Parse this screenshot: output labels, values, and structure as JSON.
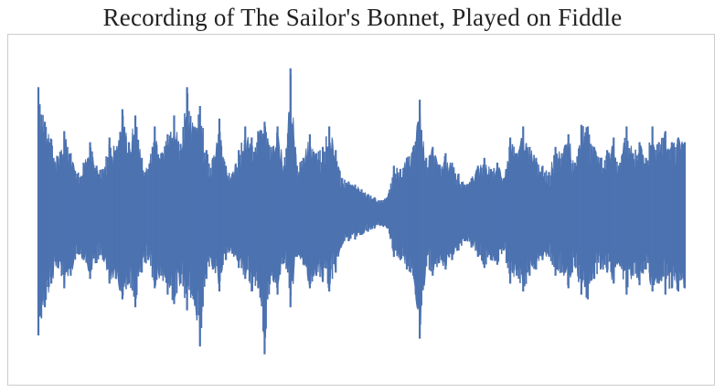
{
  "chart_data": {
    "type": "line",
    "title": "Recording of The Sailor's Bonnet, Played on Fiddle",
    "xlabel": "",
    "ylabel": "",
    "grid": false,
    "axes_visible": false,
    "ylim": [
      -1.0,
      1.0
    ],
    "series": [
      {
        "color": "#4c72b0",
        "envelope": {
          "x": [
            0.0,
            0.01,
            0.02,
            0.03,
            0.04,
            0.05,
            0.06,
            0.07,
            0.08,
            0.09,
            0.1,
            0.11,
            0.12,
            0.13,
            0.14,
            0.15,
            0.16,
            0.17,
            0.18,
            0.19,
            0.2,
            0.21,
            0.22,
            0.23,
            0.24,
            0.25,
            0.26,
            0.27,
            0.28,
            0.29,
            0.3,
            0.31,
            0.32,
            0.33,
            0.34,
            0.35,
            0.36,
            0.37,
            0.38,
            0.39,
            0.4,
            0.41,
            0.42,
            0.43,
            0.44,
            0.45,
            0.46,
            0.47,
            0.48,
            0.49,
            0.5,
            0.51,
            0.52,
            0.53,
            0.54,
            0.55,
            0.56,
            0.57,
            0.58,
            0.59,
            0.6,
            0.61,
            0.62,
            0.63,
            0.64,
            0.65,
            0.66,
            0.67,
            0.68,
            0.69,
            0.7,
            0.71,
            0.72,
            0.73,
            0.74,
            0.75,
            0.76,
            0.77,
            0.78,
            0.79,
            0.8,
            0.81,
            0.82,
            0.83,
            0.84,
            0.85,
            0.86,
            0.87,
            0.88,
            0.89,
            0.9,
            0.91,
            0.92,
            0.93,
            0.94,
            0.95,
            0.96,
            0.97,
            0.98,
            0.99,
            1.0
          ],
          "upper": [
            0.8,
            0.58,
            0.47,
            0.36,
            0.52,
            0.38,
            0.25,
            0.32,
            0.45,
            0.3,
            0.28,
            0.48,
            0.4,
            0.66,
            0.45,
            0.62,
            0.35,
            0.28,
            0.55,
            0.38,
            0.5,
            0.62,
            0.44,
            0.8,
            0.55,
            0.68,
            0.4,
            0.35,
            0.6,
            0.3,
            0.25,
            0.4,
            0.55,
            0.48,
            0.52,
            0.58,
            0.42,
            0.55,
            0.3,
            0.92,
            0.3,
            0.35,
            0.5,
            0.38,
            0.42,
            0.55,
            0.4,
            0.22,
            0.2,
            0.18,
            0.15,
            0.12,
            0.1,
            0.08,
            0.1,
            0.3,
            0.28,
            0.35,
            0.42,
            0.72,
            0.35,
            0.42,
            0.3,
            0.38,
            0.32,
            0.25,
            0.18,
            0.22,
            0.3,
            0.35,
            0.28,
            0.32,
            0.22,
            0.48,
            0.38,
            0.55,
            0.42,
            0.35,
            0.3,
            0.26,
            0.42,
            0.38,
            0.5,
            0.32,
            0.56,
            0.55,
            0.42,
            0.35,
            0.4,
            0.48,
            0.32,
            0.55,
            0.38,
            0.45,
            0.35,
            0.55,
            0.45,
            0.52,
            0.45,
            0.48,
            0.45
          ],
          "lower": [
            -0.78,
            -0.6,
            -0.45,
            -0.35,
            -0.48,
            -0.4,
            -0.26,
            -0.3,
            -0.42,
            -0.32,
            -0.3,
            -0.45,
            -0.42,
            -0.55,
            -0.45,
            -0.6,
            -0.38,
            -0.3,
            -0.48,
            -0.4,
            -0.52,
            -0.58,
            -0.45,
            -0.62,
            -0.55,
            -0.85,
            -0.42,
            -0.36,
            -0.5,
            -0.3,
            -0.26,
            -0.35,
            -0.42,
            -0.5,
            -0.48,
            -0.9,
            -0.4,
            -0.52,
            -0.32,
            -0.6,
            -0.28,
            -0.33,
            -0.48,
            -0.4,
            -0.44,
            -0.5,
            -0.38,
            -0.2,
            -0.18,
            -0.17,
            -0.14,
            -0.12,
            -0.1,
            -0.08,
            -0.1,
            -0.28,
            -0.3,
            -0.36,
            -0.4,
            -0.8,
            -0.34,
            -0.4,
            -0.32,
            -0.36,
            -0.3,
            -0.24,
            -0.18,
            -0.22,
            -0.28,
            -0.35,
            -0.3,
            -0.33,
            -0.24,
            -0.45,
            -0.4,
            -0.5,
            -0.4,
            -0.36,
            -0.3,
            -0.28,
            -0.4,
            -0.38,
            -0.48,
            -0.34,
            -0.52,
            -0.55,
            -0.42,
            -0.36,
            -0.38,
            -0.45,
            -0.34,
            -0.52,
            -0.4,
            -0.46,
            -0.36,
            -0.5,
            -0.45,
            -0.52,
            -0.48,
            -0.5,
            -0.48
          ]
        }
      }
    ]
  }
}
